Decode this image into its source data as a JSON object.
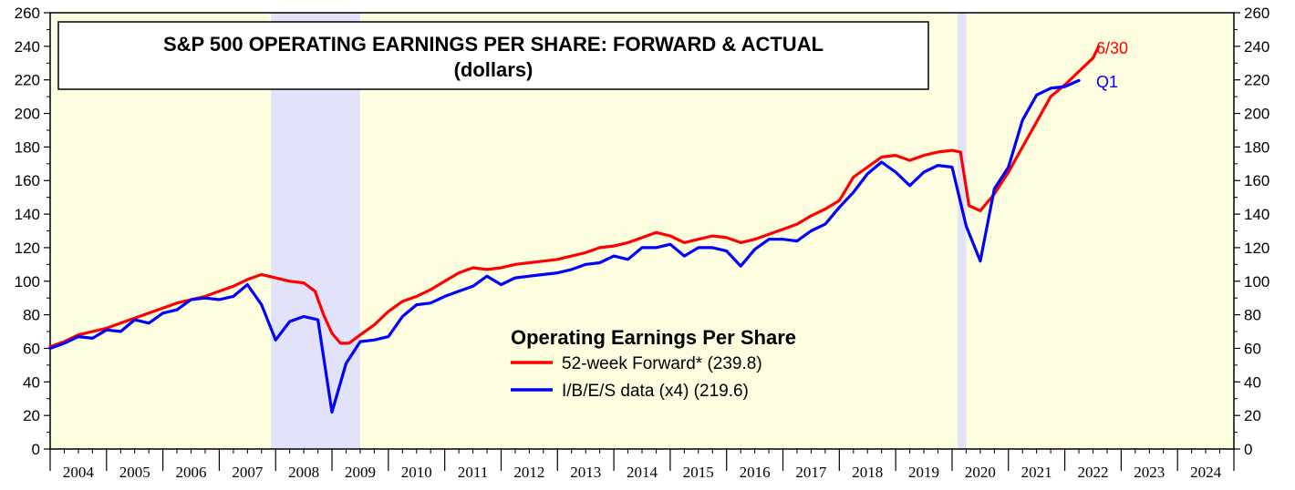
{
  "chart_data": {
    "type": "line",
    "title": "S&P 500 OPERATING EARNINGS PER SHARE: FORWARD & ACTUAL",
    "subtitle": "(dollars)",
    "ylim": [
      0,
      260
    ],
    "y_ticks": [
      0,
      20,
      40,
      60,
      80,
      100,
      120,
      140,
      160,
      180,
      200,
      220,
      240,
      260
    ],
    "x_range": [
      "2004",
      "2025"
    ],
    "x_tick_labels": [
      "2004",
      "2005",
      "2006",
      "2007",
      "2008",
      "2009",
      "2010",
      "2011",
      "2012",
      "2013",
      "2014",
      "2015",
      "2016",
      "2017",
      "2018",
      "2019",
      "2020",
      "2021",
      "2022",
      "2023",
      "2024"
    ],
    "shaded_recessions": [
      [
        2007.92,
        2009.5
      ],
      [
        2020.1,
        2020.25
      ]
    ],
    "legend": {
      "title": "Operating Earnings Per Share",
      "placement": "center"
    },
    "series": [
      {
        "name": "52-week Forward* (239.8)",
        "color": "#ff0000",
        "end_label": "6/30",
        "points": [
          [
            2004.0,
            61
          ],
          [
            2004.25,
            64
          ],
          [
            2004.5,
            68
          ],
          [
            2004.75,
            70
          ],
          [
            2005.0,
            72
          ],
          [
            2005.25,
            75
          ],
          [
            2005.5,
            78
          ],
          [
            2005.75,
            81
          ],
          [
            2006.0,
            84
          ],
          [
            2006.25,
            87
          ],
          [
            2006.5,
            89
          ],
          [
            2006.75,
            91
          ],
          [
            2007.0,
            94
          ],
          [
            2007.25,
            97
          ],
          [
            2007.5,
            101
          ],
          [
            2007.75,
            104
          ],
          [
            2008.0,
            102
          ],
          [
            2008.25,
            100
          ],
          [
            2008.5,
            99
          ],
          [
            2008.7,
            94
          ],
          [
            2008.85,
            80
          ],
          [
            2009.0,
            69
          ],
          [
            2009.15,
            63
          ],
          [
            2009.3,
            63
          ],
          [
            2009.5,
            68
          ],
          [
            2009.75,
            74
          ],
          [
            2010.0,
            82
          ],
          [
            2010.25,
            88
          ],
          [
            2010.5,
            91
          ],
          [
            2010.75,
            95
          ],
          [
            2011.0,
            100
          ],
          [
            2011.25,
            105
          ],
          [
            2011.5,
            108
          ],
          [
            2011.75,
            107
          ],
          [
            2012.0,
            108
          ],
          [
            2012.25,
            110
          ],
          [
            2012.5,
            111
          ],
          [
            2012.75,
            112
          ],
          [
            2013.0,
            113
          ],
          [
            2013.25,
            115
          ],
          [
            2013.5,
            117
          ],
          [
            2013.75,
            120
          ],
          [
            2014.0,
            121
          ],
          [
            2014.25,
            123
          ],
          [
            2014.5,
            126
          ],
          [
            2014.75,
            129
          ],
          [
            2015.0,
            127
          ],
          [
            2015.25,
            123
          ],
          [
            2015.5,
            125
          ],
          [
            2015.75,
            127
          ],
          [
            2016.0,
            126
          ],
          [
            2016.25,
            123
          ],
          [
            2016.5,
            125
          ],
          [
            2016.75,
            128
          ],
          [
            2017.0,
            131
          ],
          [
            2017.25,
            134
          ],
          [
            2017.5,
            139
          ],
          [
            2017.75,
            143
          ],
          [
            2018.0,
            148
          ],
          [
            2018.25,
            162
          ],
          [
            2018.5,
            168
          ],
          [
            2018.75,
            174
          ],
          [
            2019.0,
            175
          ],
          [
            2019.25,
            172
          ],
          [
            2019.5,
            175
          ],
          [
            2019.75,
            177
          ],
          [
            2020.0,
            178
          ],
          [
            2020.15,
            177
          ],
          [
            2020.3,
            145
          ],
          [
            2020.5,
            142
          ],
          [
            2020.75,
            152
          ],
          [
            2021.0,
            165
          ],
          [
            2021.25,
            180
          ],
          [
            2021.5,
            195
          ],
          [
            2021.75,
            210
          ],
          [
            2022.0,
            217
          ],
          [
            2022.25,
            225
          ],
          [
            2022.5,
            233
          ],
          [
            2022.6,
            239.8
          ]
        ]
      },
      {
        "name": "I/B/E/S data (x4) (219.6)",
        "color": "#0000ff",
        "end_label": "Q1",
        "points": [
          [
            2004.0,
            60
          ],
          [
            2004.25,
            63
          ],
          [
            2004.5,
            67
          ],
          [
            2004.75,
            66
          ],
          [
            2005.0,
            71
          ],
          [
            2005.25,
            70
          ],
          [
            2005.5,
            77
          ],
          [
            2005.75,
            75
          ],
          [
            2006.0,
            81
          ],
          [
            2006.25,
            83
          ],
          [
            2006.5,
            89
          ],
          [
            2006.75,
            90
          ],
          [
            2007.0,
            89
          ],
          [
            2007.25,
            91
          ],
          [
            2007.5,
            98
          ],
          [
            2007.75,
            86
          ],
          [
            2008.0,
            65
          ],
          [
            2008.25,
            76
          ],
          [
            2008.5,
            79
          ],
          [
            2008.75,
            77
          ],
          [
            2009.0,
            22
          ],
          [
            2009.25,
            51
          ],
          [
            2009.5,
            64
          ],
          [
            2009.75,
            65
          ],
          [
            2010.0,
            67
          ],
          [
            2010.25,
            79
          ],
          [
            2010.5,
            86
          ],
          [
            2010.75,
            87
          ],
          [
            2011.0,
            91
          ],
          [
            2011.25,
            94
          ],
          [
            2011.5,
            97
          ],
          [
            2011.75,
            103
          ],
          [
            2012.0,
            98
          ],
          [
            2012.25,
            102
          ],
          [
            2012.5,
            103
          ],
          [
            2012.75,
            104
          ],
          [
            2013.0,
            105
          ],
          [
            2013.25,
            107
          ],
          [
            2013.5,
            110
          ],
          [
            2013.75,
            111
          ],
          [
            2014.0,
            115
          ],
          [
            2014.25,
            113
          ],
          [
            2014.5,
            120
          ],
          [
            2014.75,
            120
          ],
          [
            2015.0,
            122
          ],
          [
            2015.25,
            115
          ],
          [
            2015.5,
            120
          ],
          [
            2015.75,
            120
          ],
          [
            2016.0,
            118
          ],
          [
            2016.25,
            109
          ],
          [
            2016.5,
            119
          ],
          [
            2016.75,
            125
          ],
          [
            2017.0,
            125
          ],
          [
            2017.25,
            124
          ],
          [
            2017.5,
            130
          ],
          [
            2017.75,
            134
          ],
          [
            2018.0,
            144
          ],
          [
            2018.25,
            153
          ],
          [
            2018.5,
            164
          ],
          [
            2018.75,
            171
          ],
          [
            2019.0,
            165
          ],
          [
            2019.25,
            157
          ],
          [
            2019.5,
            165
          ],
          [
            2019.75,
            169
          ],
          [
            2020.0,
            168
          ],
          [
            2020.25,
            133
          ],
          [
            2020.5,
            112
          ],
          [
            2020.75,
            155
          ],
          [
            2021.0,
            168
          ],
          [
            2021.25,
            196
          ],
          [
            2021.5,
            211
          ],
          [
            2021.75,
            215
          ],
          [
            2022.0,
            216
          ],
          [
            2022.25,
            219.6
          ]
        ]
      }
    ]
  }
}
